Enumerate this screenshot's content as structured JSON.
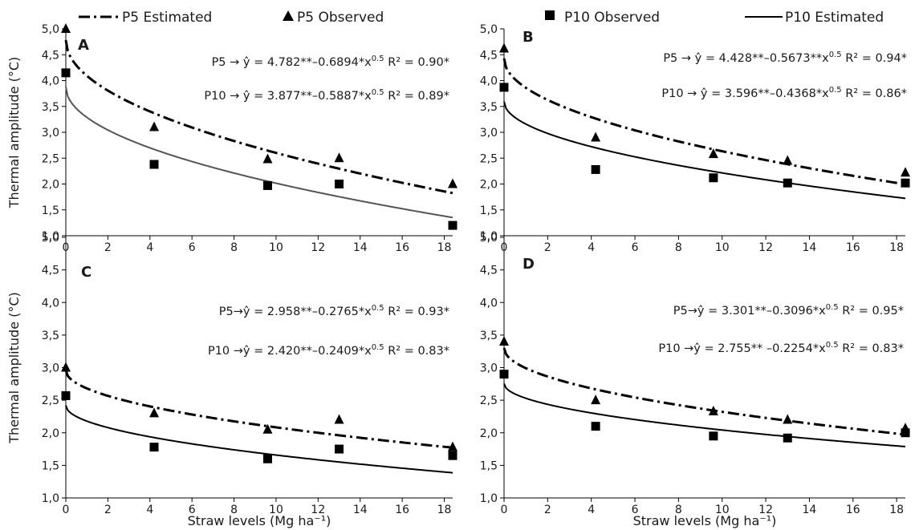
{
  "legend": {
    "p5_estimated": "P5 Estimated",
    "p5_observed": "P5 Observed",
    "p10_observed": "P10 Observed",
    "p10_estimated": "P10 Estimated"
  },
  "colors": {
    "ink": "#000000",
    "panel_a_p10_line": "#555555",
    "grid": "none"
  },
  "chart_data": [
    {
      "type": "scatter",
      "panel": "A",
      "xlabel": "",
      "ylabel": "Thermal amplitude (°C)",
      "xlim": [
        0,
        18.4
      ],
      "ylim": [
        1.0,
        5.0
      ],
      "xticks": [
        "0",
        "2",
        "4",
        "6",
        "8",
        "10",
        "12",
        "14",
        "16",
        "18"
      ],
      "yticks": [
        "1,0",
        "1,5",
        "2,0",
        "2,5",
        "3,0",
        "3,5",
        "4,0",
        "4,5",
        "5,0"
      ],
      "grid": false,
      "equations": [
        {
          "series": "P5",
          "prefix": "P5 →  ŷ = 4.782**–0.6894*x",
          "exp": "0.5",
          "r2": " R² = 0.90*",
          "a": 4.782,
          "b": -0.6894
        },
        {
          "series": "P10",
          "prefix": "P10 →  ŷ = 3.877**–0.5887*x",
          "exp": "0.5",
          "r2": " R² = 0.89*",
          "a": 3.877,
          "b": -0.5887
        }
      ],
      "series": [
        {
          "name": "P5 Observed",
          "marker": "triangle",
          "x": [
            0,
            4.2,
            9.6,
            13.0,
            18.4
          ],
          "y": [
            5.0,
            3.1,
            2.48,
            2.5,
            2.0
          ]
        },
        {
          "name": "P10 Observed",
          "marker": "square",
          "x": [
            0,
            4.2,
            9.6,
            13.0,
            18.4
          ],
          "y": [
            4.15,
            2.38,
            1.97,
            2.0,
            1.2
          ]
        }
      ]
    },
    {
      "type": "scatter",
      "panel": "B",
      "xlabel": "",
      "ylabel": "",
      "xlim": [
        0,
        18.4
      ],
      "ylim": [
        1.0,
        5.0
      ],
      "xticks": [
        "0",
        "2",
        "4",
        "6",
        "8",
        "10",
        "12",
        "14",
        "16",
        "18"
      ],
      "yticks": [
        "1,0",
        "1,5",
        "2,0",
        "2,5",
        "3,0",
        "3,5",
        "4,0",
        "4,5",
        "5,0"
      ],
      "grid": false,
      "equations": [
        {
          "series": "P5",
          "prefix": "P5 → ŷ = 4.428**–0.5673**x",
          "exp": "0.5",
          "r2": " R² = 0.94*",
          "a": 4.428,
          "b": -0.5673
        },
        {
          "series": "P10",
          "prefix": "P10 → ŷ = 3.596**–0.4368*x",
          "exp": "0.5",
          "r2": " R² = 0.86*",
          "a": 3.596,
          "b": -0.4368
        }
      ],
      "series": [
        {
          "name": "P5 Observed",
          "marker": "triangle",
          "x": [
            0,
            4.2,
            9.6,
            13.0,
            18.4
          ],
          "y": [
            4.62,
            2.9,
            2.58,
            2.45,
            2.22
          ]
        },
        {
          "name": "P10 Observed",
          "marker": "square",
          "x": [
            0,
            4.2,
            9.6,
            13.0,
            18.4
          ],
          "y": [
            3.87,
            2.28,
            2.12,
            2.02,
            2.02
          ]
        }
      ]
    },
    {
      "type": "scatter",
      "panel": "C",
      "xlabel": "Straw levels (Mg ha⁻¹)",
      "ylabel": "Thermal amplitude (°C)",
      "xlim": [
        0,
        18.4
      ],
      "ylim": [
        1.0,
        5.0
      ],
      "xticks": [
        "0",
        "2",
        "4",
        "6",
        "8",
        "10",
        "12",
        "14",
        "16",
        "18"
      ],
      "yticks": [
        "1,0",
        "1,5",
        "2,0",
        "2,5",
        "3,0",
        "3,5",
        "4,0",
        "4,5",
        "5,0"
      ],
      "grid": false,
      "equations": [
        {
          "series": "P5",
          "prefix": "P5→ŷ = 2.958**–0.2765*x",
          "exp": "0.5",
          "r2": " R² = 0.93*",
          "a": 2.958,
          "b": -0.2765
        },
        {
          "series": "P10",
          "prefix": "P10 →ŷ = 2.420**–0.2409*x",
          "exp": "0.5",
          "r2": " R² = 0.83*",
          "a": 2.42,
          "b": -0.2409
        }
      ],
      "series": [
        {
          "name": "P5 Observed",
          "marker": "triangle",
          "x": [
            0,
            4.2,
            9.6,
            13.0,
            18.4
          ],
          "y": [
            3.0,
            2.3,
            2.05,
            2.2,
            1.78
          ]
        },
        {
          "name": "P10 Observed",
          "marker": "square",
          "x": [
            0,
            4.2,
            9.6,
            13.0,
            18.4
          ],
          "y": [
            2.57,
            1.78,
            1.6,
            1.75,
            1.65
          ]
        }
      ]
    },
    {
      "type": "scatter",
      "panel": "D",
      "xlabel": "Straw levels (Mg ha⁻¹)",
      "ylabel": "",
      "xlim": [
        0,
        18.4
      ],
      "ylim": [
        1.0,
        5.0
      ],
      "xticks": [
        "0",
        "2",
        "4",
        "6",
        "8",
        "10",
        "12",
        "14",
        "16",
        "18"
      ],
      "yticks": [
        "1,0",
        "1,5",
        "2,0",
        "2,5",
        "3,0",
        "3,5",
        "4,0",
        "4,5",
        "5,0"
      ],
      "grid": false,
      "equations": [
        {
          "series": "P5",
          "prefix": "P5→ŷ = 3.301**–0.3096*x",
          "exp": "0.5",
          "r2": " R² = 0.95*",
          "a": 3.301,
          "b": -0.3096
        },
        {
          "series": "P10",
          "prefix": "P10 →ŷ = 2.755** –0.2254*x",
          "exp": "0.5",
          "r2": " R² = 0.83*",
          "a": 2.755,
          "b": -0.2254
        }
      ],
      "series": [
        {
          "name": "P5 Observed",
          "marker": "triangle",
          "x": [
            0,
            4.2,
            9.6,
            13.0,
            18.4
          ],
          "y": [
            3.4,
            2.5,
            2.33,
            2.2,
            2.07
          ]
        },
        {
          "name": "P10 Observed",
          "marker": "square",
          "x": [
            0,
            4.2,
            9.6,
            13.0,
            18.4
          ],
          "y": [
            2.9,
            2.1,
            1.95,
            1.92,
            2.0
          ]
        }
      ]
    }
  ]
}
